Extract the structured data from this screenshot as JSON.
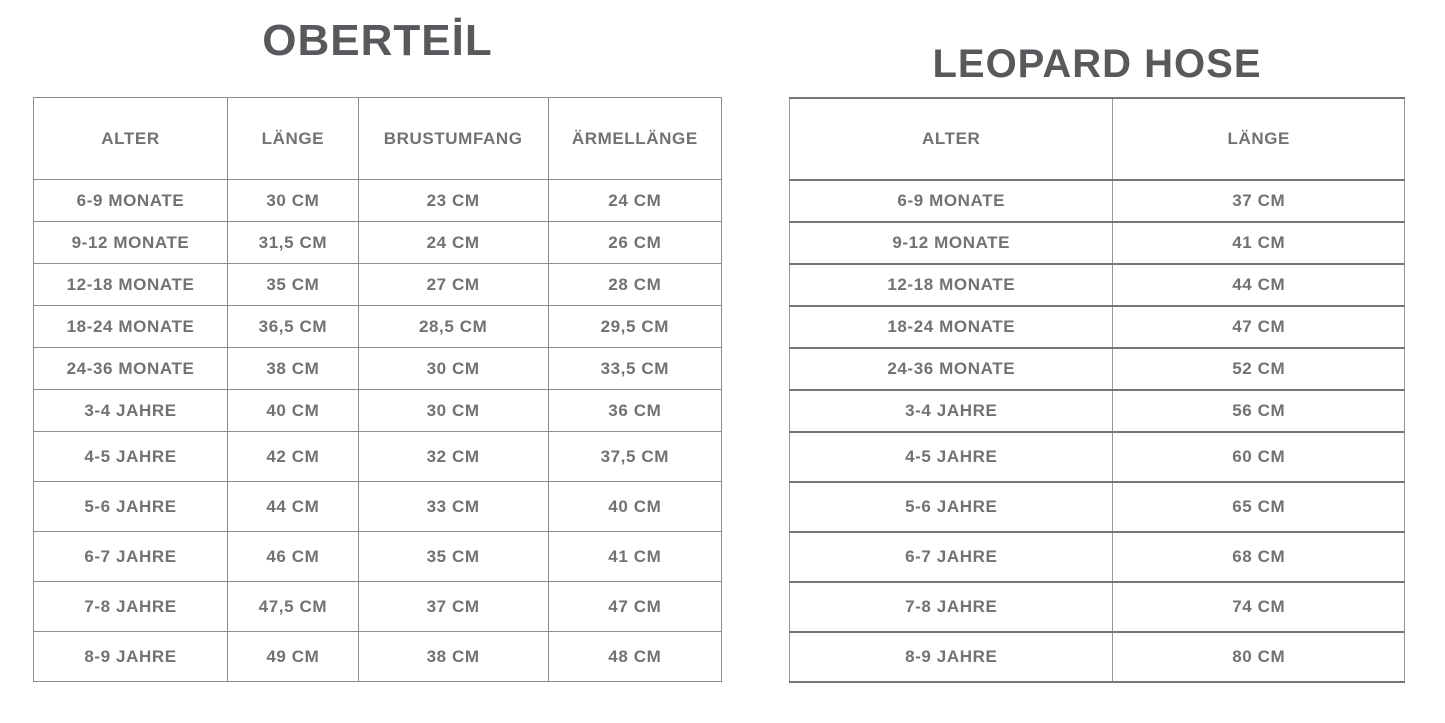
{
  "page": {
    "background_color": "#ffffff",
    "title_color": "#58595c",
    "text_color": "#717274",
    "border_color": "#8b8c8e"
  },
  "oberteil": {
    "title": "OBERTEİL",
    "headers": [
      "ALTER",
      "LÄNGE",
      "BRUSTUMFANG",
      "ÄRMELLÄNGE"
    ],
    "rows": [
      [
        "6-9 MONATE",
        "30 CM",
        "23 CM",
        "24 CM"
      ],
      [
        "9-12 MONATE",
        "31,5 CM",
        "24 CM",
        "26 CM"
      ],
      [
        "12-18 MONATE",
        "35 CM",
        "27 CM",
        "28 CM"
      ],
      [
        "18-24 MONATE",
        "36,5 CM",
        "28,5 CM",
        "29,5 CM"
      ],
      [
        "24-36 MONATE",
        "38 CM",
        "30 CM",
        "33,5 CM"
      ],
      [
        "3-4 JAHRE",
        "40 CM",
        "30 CM",
        "36 CM"
      ],
      [
        "4-5 JAHRE",
        "42 CM",
        "32 CM",
        "37,5 CM"
      ],
      [
        "5-6 JAHRE",
        "44 CM",
        "33 CM",
        "40 CM"
      ],
      [
        "6-7 JAHRE",
        "46 CM",
        "35 CM",
        "41 CM"
      ],
      [
        "7-8 JAHRE",
        "47,5 CM",
        "37 CM",
        "47 CM"
      ],
      [
        "8-9 JAHRE",
        "49 CM",
        "38 CM",
        "48 CM"
      ]
    ]
  },
  "leopard_hose": {
    "title": "LEOPARD HOSE",
    "headers": [
      "ALTER",
      "LÄNGE"
    ],
    "rows": [
      [
        "6-9 MONATE",
        "37 CM"
      ],
      [
        "9-12 MONATE",
        "41 CM"
      ],
      [
        "12-18 MONATE",
        "44 CM"
      ],
      [
        "18-24 MONATE",
        "47 CM"
      ],
      [
        "24-36 MONATE",
        "52 CM"
      ],
      [
        "3-4 JAHRE",
        "56 CM"
      ],
      [
        "4-5 JAHRE",
        "60 CM"
      ],
      [
        "5-6 JAHRE",
        "65 CM"
      ],
      [
        "6-7 JAHRE",
        "68 CM"
      ],
      [
        "7-8 JAHRE",
        "74 CM"
      ],
      [
        "8-9 JAHRE",
        "80 CM"
      ]
    ]
  }
}
